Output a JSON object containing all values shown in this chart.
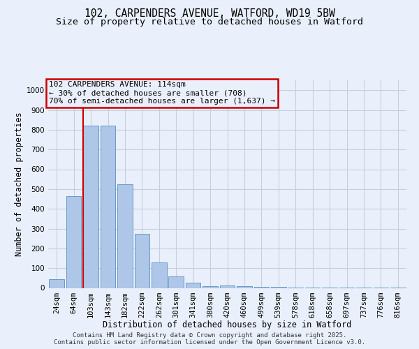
{
  "title1": "102, CARPENDERS AVENUE, WATFORD, WD19 5BW",
  "title2": "Size of property relative to detached houses in Watford",
  "xlabel": "Distribution of detached houses by size in Watford",
  "ylabel": "Number of detached properties",
  "categories": [
    "24sqm",
    "64sqm",
    "103sqm",
    "143sqm",
    "182sqm",
    "222sqm",
    "262sqm",
    "301sqm",
    "341sqm",
    "380sqm",
    "420sqm",
    "460sqm",
    "499sqm",
    "539sqm",
    "578sqm",
    "618sqm",
    "658sqm",
    "697sqm",
    "737sqm",
    "776sqm",
    "816sqm"
  ],
  "values": [
    45,
    465,
    820,
    820,
    525,
    275,
    130,
    60,
    25,
    10,
    12,
    10,
    5,
    5,
    3,
    2,
    2,
    2,
    1,
    1,
    1
  ],
  "bar_color": "#aec6e8",
  "bar_edge_color": "#5a8fc2",
  "property_index": 2,
  "property_line_color": "#cc0000",
  "annotation_box_color": "#cc0000",
  "annotation_line1": "102 CARPENDERS AVENUE: 114sqm",
  "annotation_line2": "← 30% of detached houses are smaller (708)",
  "annotation_line3": "70% of semi-detached houses are larger (1,637) →",
  "ylim_max": 1050,
  "yticks": [
    0,
    100,
    200,
    300,
    400,
    500,
    600,
    700,
    800,
    900,
    1000
  ],
  "bg_color": "#eaf0fb",
  "grid_color": "#c5cfe0",
  "footer1": "Contains HM Land Registry data © Crown copyright and database right 2025.",
  "footer2": "Contains public sector information licensed under the Open Government Licence v3.0.",
  "title_fontsize": 10.5,
  "subtitle_fontsize": 9.5,
  "ylabel_fontsize": 8.5,
  "xlabel_fontsize": 8.5,
  "tick_fontsize": 7.5,
  "ann_fontsize": 8.0,
  "footer_fontsize": 6.5
}
